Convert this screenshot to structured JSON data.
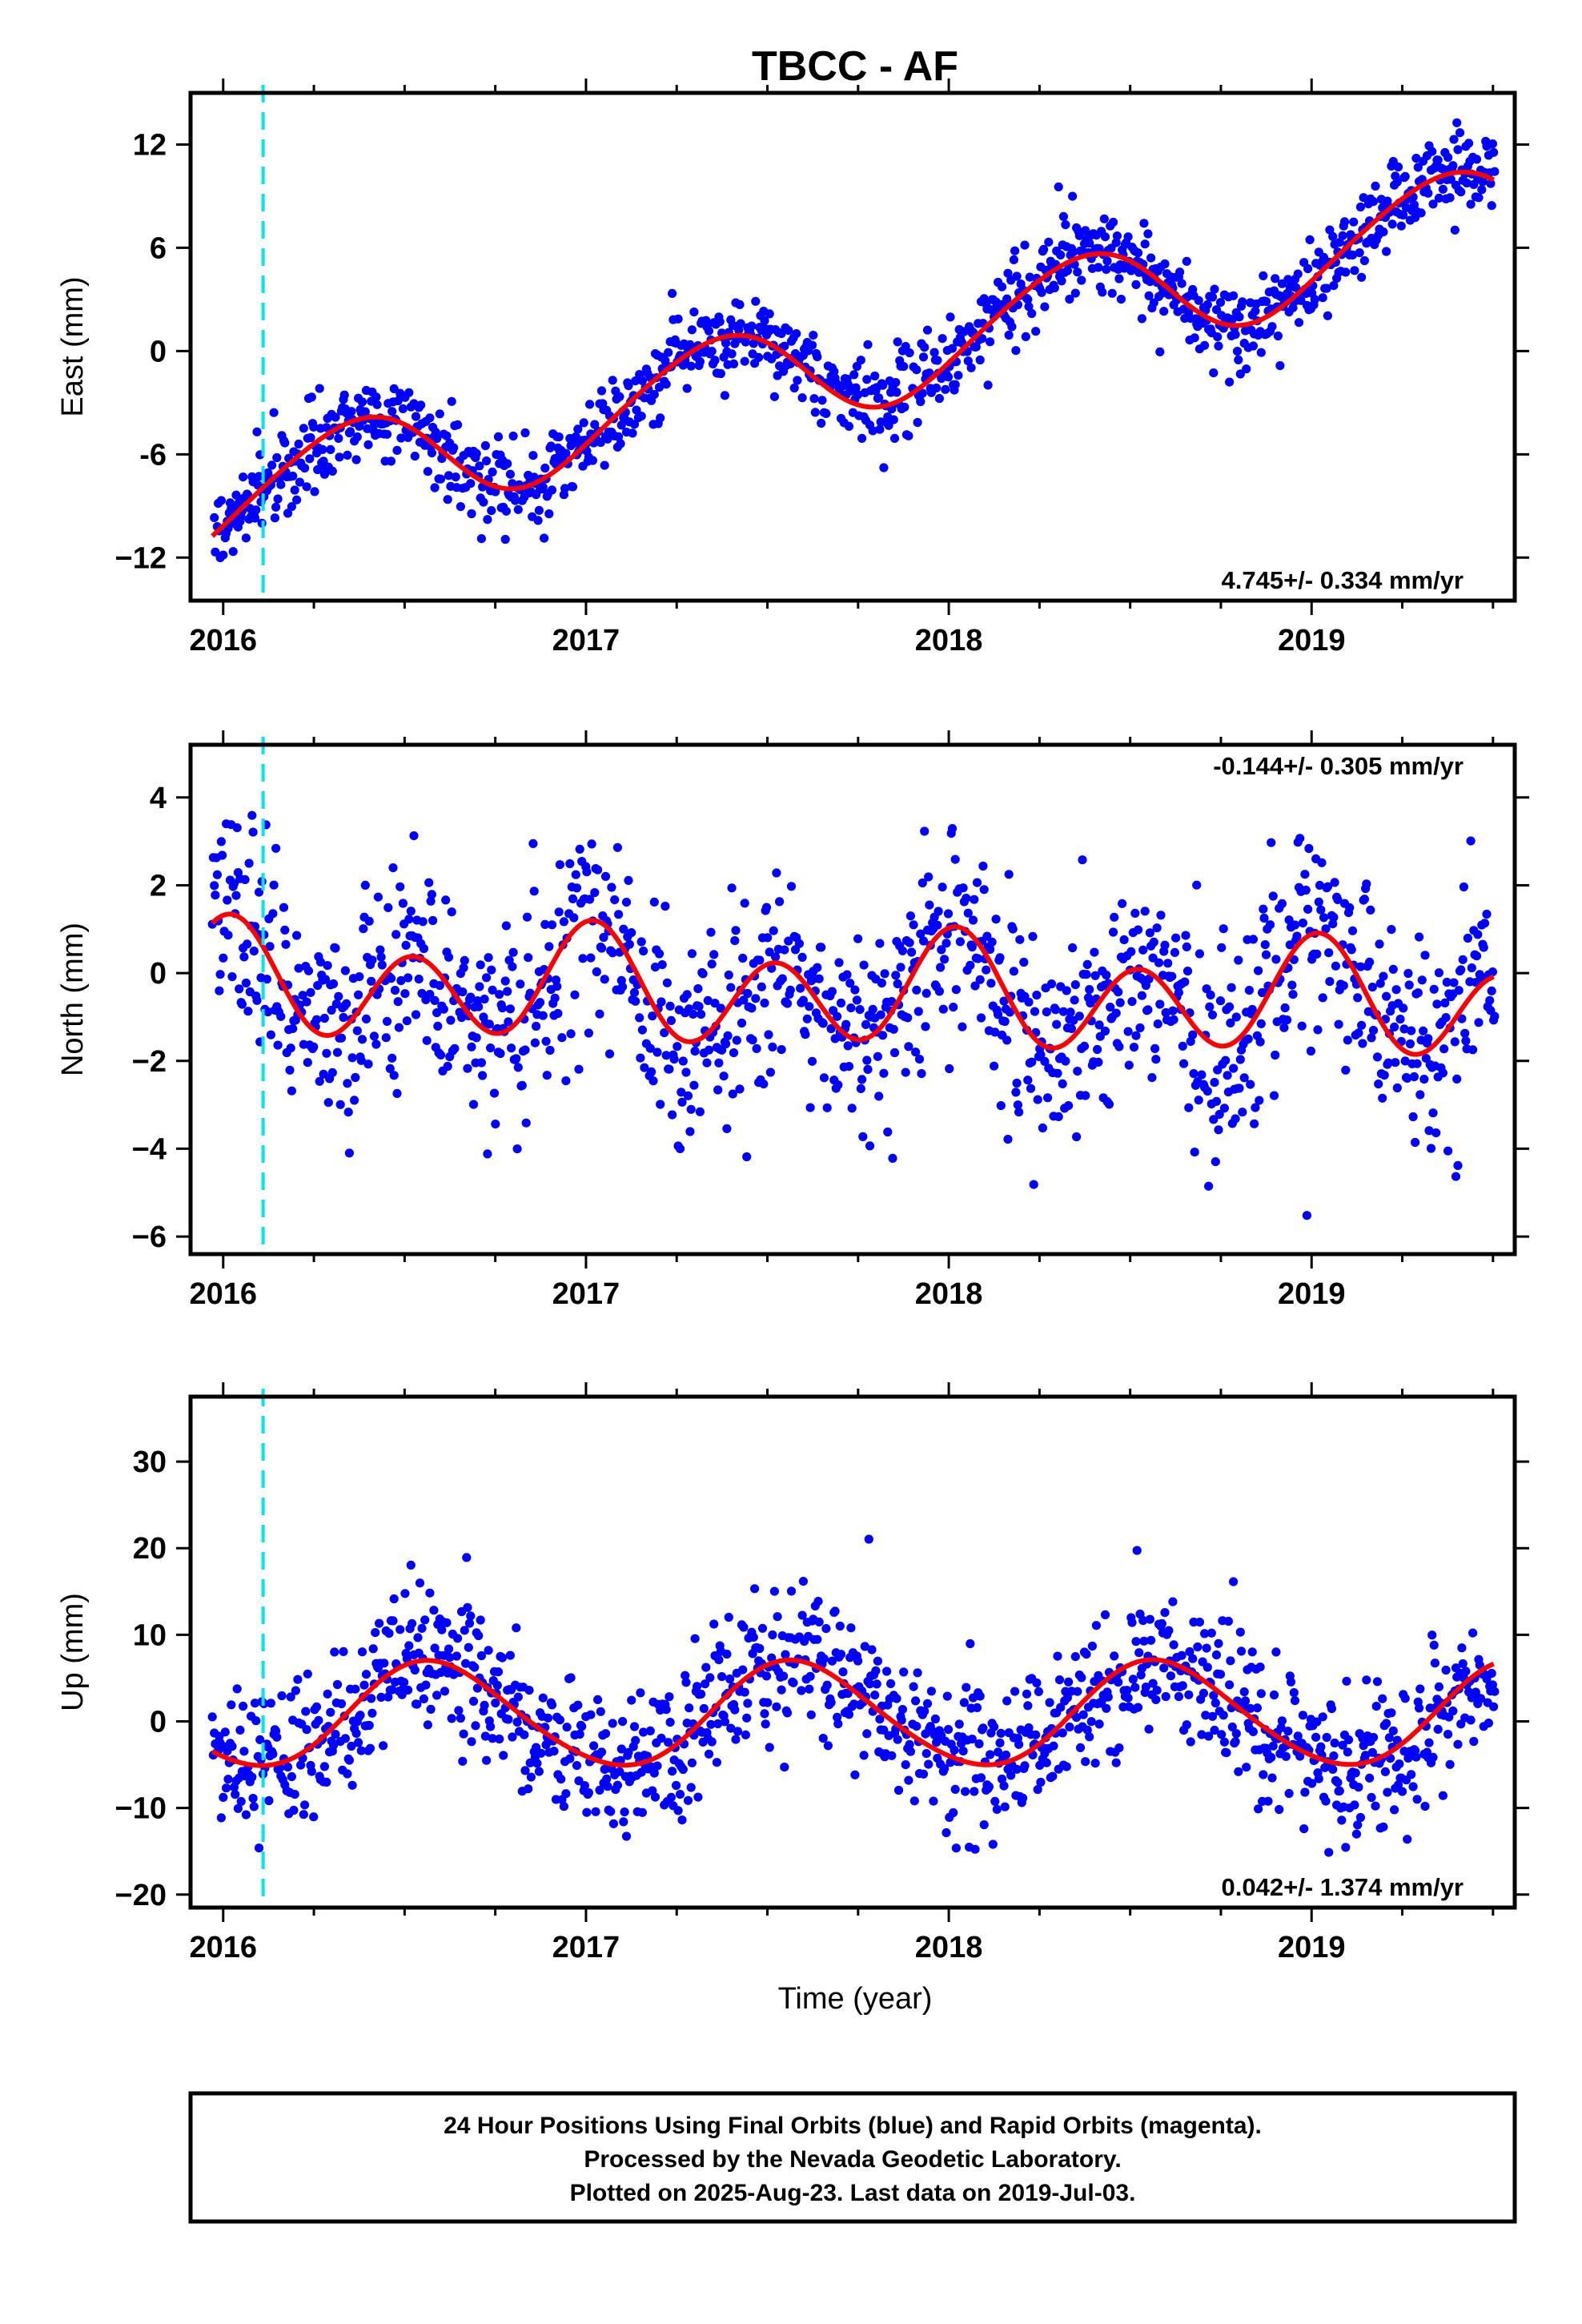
{
  "figure": {
    "title": "TBCC - AF",
    "xlabel": "Time (year)",
    "caption": [
      "24 Hour Positions Using Final Orbits (blue) and Rapid Orbits (magenta).",
      "Processed by the Nevada Geodetic Laboratory.",
      "Plotted on 2025-Aug-23. Last data on 2019-Jul-03."
    ],
    "colors": {
      "data": "#0000ff",
      "model": "#ff0000",
      "event_line": "#00e5ee",
      "frame": "#000000"
    }
  },
  "chart_data": [
    {
      "type": "scatter",
      "ylabel": "East (mm)",
      "xlim": [
        2015.91,
        2019.56
      ],
      "ylim": [
        -14.5,
        15
      ],
      "x_ticks": [
        2016,
        2017,
        2018,
        2019
      ],
      "y_ticks": [
        12,
        6,
        0,
        -6,
        -12
      ],
      "y_tick_labels": [
        "12",
        "6",
        "0",
        "-6",
        "−12"
      ],
      "rate_label": "4.745+/- 0.334 mm/yr",
      "rate_position": "bottom-right",
      "event_line_x": 2016.11,
      "data_extent": [
        2015.97,
        2019.505
      ],
      "model": {
        "trend_anchor": [
          2016.0,
          -8.7
        ],
        "rate_mm_per_yr": 4.745,
        "annual_amplitude": 3.0,
        "annual_peak_phase": 0.35,
        "semiannual_amplitude": 0.3,
        "noise_sigma": 1.2
      },
      "series": [
        {
          "name": "Final Orbits (blue)",
          "kind": "points"
        },
        {
          "name": "Model fit",
          "kind": "line"
        }
      ]
    },
    {
      "type": "scatter",
      "ylabel": "North (mm)",
      "xlim": [
        2015.91,
        2019.56
      ],
      "ylim": [
        -6.4,
        5.2
      ],
      "x_ticks": [
        2016,
        2017,
        2018,
        2019
      ],
      "y_ticks": [
        4,
        2,
        0,
        -2,
        -4,
        -6
      ],
      "y_tick_labels": [
        "4",
        "2",
        "0",
        "−2",
        "−4",
        "−6"
      ],
      "rate_label": "-0.144+/- 0.305 mm/yr",
      "rate_position": "top-right",
      "event_line_x": 2016.11,
      "data_extent": [
        2015.97,
        2019.505
      ],
      "model": {
        "trend_anchor": [
          2016.0,
          -0.2
        ],
        "rate_mm_per_yr": -0.144,
        "annual_amplitude": 0.45,
        "annual_peak_phase": 0.0,
        "semiannual_amplitude": 1.1,
        "semiannual_peak_phase": 0.52,
        "noise_sigma": 1.2
      },
      "series": [
        {
          "name": "Final Orbits (blue)",
          "kind": "points"
        },
        {
          "name": "Model fit",
          "kind": "line"
        }
      ]
    },
    {
      "type": "scatter",
      "ylabel": "Up (mm)",
      "xlim": [
        2015.91,
        2019.56
      ],
      "ylim": [
        -21.5,
        37.5
      ],
      "x_ticks": [
        2016,
        2017,
        2018,
        2019
      ],
      "y_ticks": [
        30,
        20,
        10,
        0,
        -10,
        -20
      ],
      "y_tick_labels": [
        "30",
        "20",
        "10",
        "0",
        "−10",
        "−20"
      ],
      "rate_label": "0.042+/- 1.374 mm/yr",
      "rate_position": "bottom-right",
      "event_line_x": 2016.11,
      "data_extent": [
        2015.97,
        2019.505
      ],
      "model": {
        "trend_anchor": [
          2016.0,
          0.7
        ],
        "rate_mm_per_yr": 0.042,
        "annual_amplitude": 6.0,
        "annual_peak_phase": 0.58,
        "semiannual_amplitude": 0.5,
        "noise_sigma": 4.0
      },
      "series": [
        {
          "name": "Final Orbits (blue)",
          "kind": "points"
        },
        {
          "name": "Model fit",
          "kind": "line"
        }
      ]
    }
  ]
}
